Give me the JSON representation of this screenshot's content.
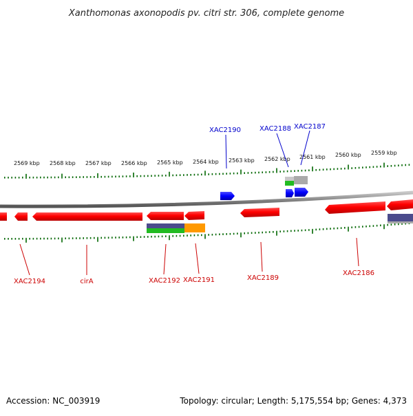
{
  "title": "Xanthomonas axonopodis pv. citri str. 306, complete genome",
  "footer": {
    "accession": "Accession: NC_003919",
    "summary": "Topology: circular; Length: 5,175,554 bp; Genes: 4,373"
  },
  "colors": {
    "forward_label": "#0000cc",
    "reverse_label": "#cc0000",
    "backbone": "#888888",
    "tick": "#006600",
    "gene_red": "#ff0000",
    "gene_blue": "#0000ff",
    "band_purple": "#4b4b8c",
    "band_green": "#22bb22",
    "band_orange": "#ff9900",
    "band_grey": "#aaaaaa"
  },
  "scale_labels": [
    "2569 kbp",
    "2568 kbp",
    "2567 kbp",
    "2566 kbp",
    "2565 kbp",
    "2564 kbp",
    "2563 kbp",
    "2562 kbp",
    "2561 kbp",
    "2560 kbp",
    "2559 kbp"
  ],
  "forward_gene_labels": [
    "XAC2190",
    "XAC2188",
    "XAC2187"
  ],
  "reverse_gene_labels": [
    "XAC2194",
    "cirA",
    "XAC2192",
    "XAC2191",
    "XAC2189",
    "XAC2186"
  ]
}
